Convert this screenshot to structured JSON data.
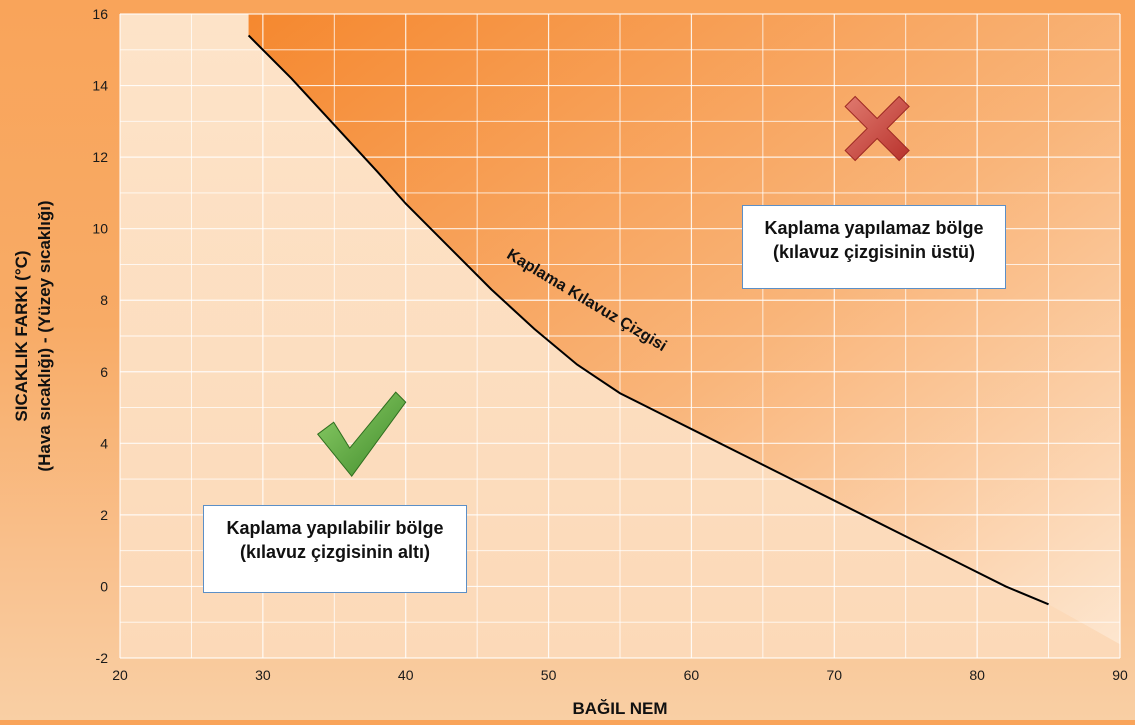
{
  "chart_data": {
    "type": "line",
    "title": "",
    "xlabel": "BAĞIL NEM",
    "ylabel_line1": "SICAKLIK FARKI (°C)",
    "ylabel_line2": "(Hava sıcaklığı) - (Yüzey sıcaklığı)",
    "xlim": [
      20,
      90
    ],
    "ylim": [
      -2,
      16
    ],
    "x_ticks": [
      20,
      30,
      40,
      50,
      60,
      70,
      80,
      90
    ],
    "y_ticks": [
      -2,
      0,
      2,
      4,
      6,
      8,
      10,
      12,
      14,
      16
    ],
    "grid": true,
    "series": [
      {
        "name": "Kaplama Kılavuz Çizgisi",
        "x": [
          29,
          32,
          35,
          38,
          40,
          43,
          46,
          49,
          52,
          55,
          58,
          61,
          64,
          67,
          70,
          73,
          76,
          79,
          82,
          85
        ],
        "y": [
          15.4,
          14.2,
          12.9,
          11.6,
          10.7,
          9.5,
          8.3,
          7.2,
          6.2,
          5.4,
          4.8,
          4.2,
          3.6,
          3.0,
          2.4,
          1.8,
          1.2,
          0.6,
          0.0,
          -0.5
        ]
      }
    ],
    "annotations": {
      "above": {
        "line1": "Kaplama yapılamaz bölge",
        "line2": "(kılavuz çizgisinin üstü)",
        "symbol": "cross-icon",
        "symbol_color": "#c9473f"
      },
      "below": {
        "line1": "Kaplama yapılabilir bölge",
        "line2": "(kılavuz çizgisinin altı)",
        "symbol": "check-icon",
        "symbol_color": "#5aa23a"
      }
    },
    "colors": {
      "unsafe_zone_top": "#f68f3c",
      "unsafe_zone_bottom": "#fde4cc",
      "safe_zone": "#fde7d2",
      "grid": "#ffffff",
      "curve": "#000000",
      "box_border": "#5b8fc7"
    }
  }
}
